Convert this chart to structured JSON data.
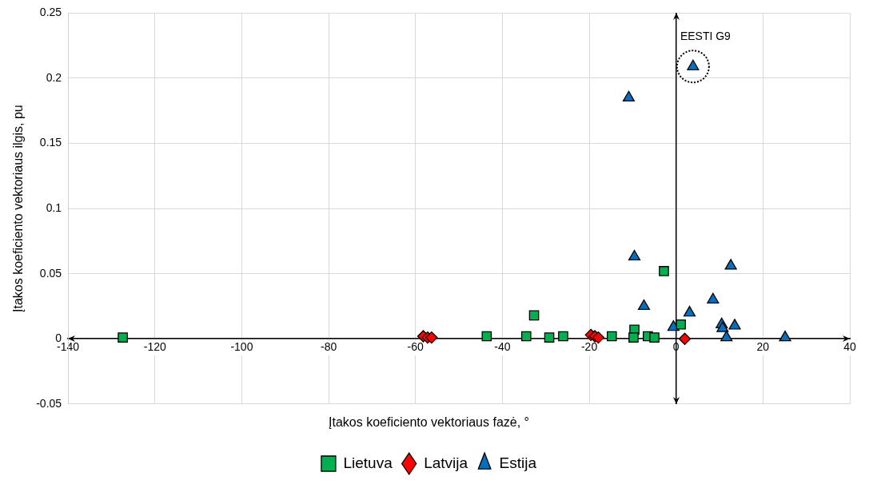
{
  "chart_data": {
    "type": "scatter",
    "xlabel": "Įtakos koeficiento vektoriaus fazė, °",
    "ylabel": "Įtakos koeficiento vektoriaus ilgis, pu",
    "xlim": [
      -140,
      40
    ],
    "xticks": [
      -140,
      -120,
      -100,
      -80,
      -60,
      -40,
      -20,
      0,
      20,
      40
    ],
    "ylim": [
      -0.05,
      0.25
    ],
    "yticks": [
      -0.05,
      0,
      0.05,
      0.1,
      0.15,
      0.2,
      0.25
    ],
    "grid": true,
    "legend": "bottom",
    "annotations": [
      {
        "text": "EESTI G9",
        "x": 3.9,
        "y": 0.209
      }
    ],
    "series": [
      {
        "name": "Lietuva",
        "color": "#00b050",
        "marker": "square",
        "x": [
          -127.4,
          -43.6,
          -32.7,
          -34.5,
          -29.2,
          -26,
          -14.8,
          -9.6,
          -9.8,
          -6.5,
          -5,
          -2.8,
          1.1
        ],
        "values": [
          0.001,
          0.002,
          0.018,
          0.002,
          0.001,
          0.002,
          0.002,
          0.007,
          0.001,
          0.002,
          0.001,
          0.052,
          0.011
        ]
      },
      {
        "name": "Latvija",
        "color": "#ff0000",
        "marker": "diamond",
        "x": [
          -58.2,
          -57.2,
          -56.3,
          -19.6,
          -18.7,
          -17.9,
          2
        ],
        "values": [
          0.002,
          0.001,
          0.001,
          0.003,
          0.002,
          0.001,
          0
        ]
      },
      {
        "name": "Estija",
        "color": "#0070c0",
        "marker": "triangle",
        "x": [
          3.9,
          -10.9,
          -9.6,
          -7.4,
          -0.6,
          3.1,
          8.5,
          12.6,
          10.5,
          10.7,
          13.5,
          11.6,
          25.1
        ],
        "values": [
          0.209,
          0.185,
          0.063,
          0.025,
          0.009,
          0.02,
          0.03,
          0.056,
          0.011,
          0.008,
          0.01,
          0.001,
          0.001
        ]
      }
    ]
  }
}
